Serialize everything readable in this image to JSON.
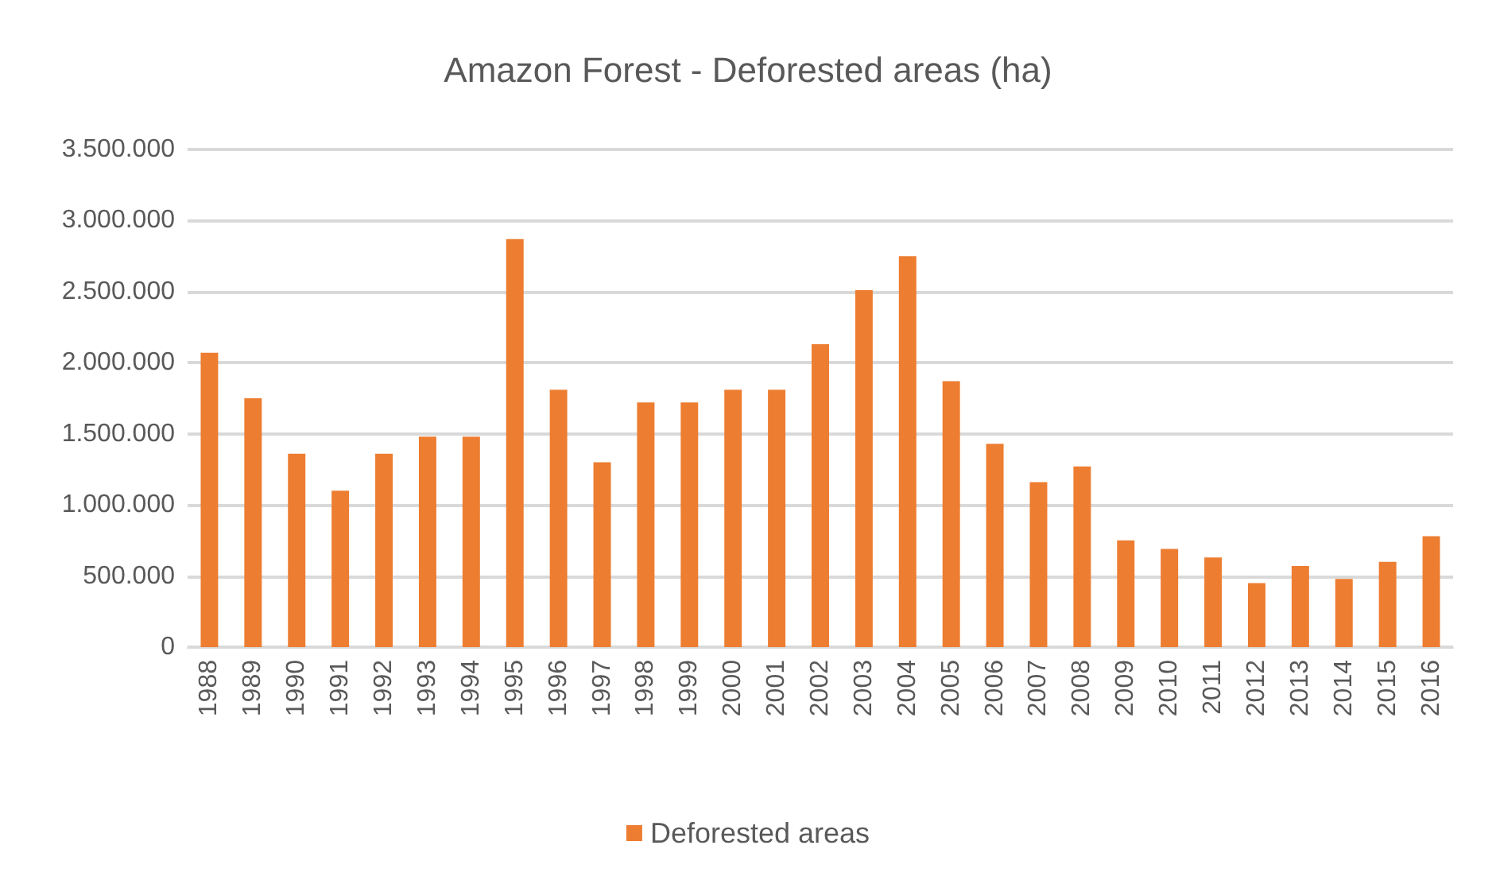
{
  "chart_data": {
    "type": "bar",
    "title": "Amazon Forest - Deforested areas (ha)",
    "categories": [
      "1988",
      "1989",
      "1990",
      "1991",
      "1992",
      "1993",
      "1994",
      "1995",
      "1996",
      "1997",
      "1998",
      "1999",
      "2000",
      "2001",
      "2002",
      "2003",
      "2004",
      "2005",
      "2006",
      "2007",
      "2008",
      "2009",
      "2010",
      "2011",
      "2012",
      "2013",
      "2014",
      "2015",
      "2016"
    ],
    "series": [
      {
        "name": "Deforested areas",
        "color": "#ed7d31",
        "values": [
          2070000,
          1750000,
          1360000,
          1100000,
          1360000,
          1480000,
          1480000,
          2870000,
          1810000,
          1300000,
          1720000,
          1720000,
          1810000,
          1810000,
          2130000,
          2510000,
          2750000,
          1870000,
          1430000,
          1160000,
          1270000,
          750000,
          690000,
          630000,
          450000,
          570000,
          480000,
          600000,
          780000
        ]
      }
    ],
    "ylim": [
      0,
      3500000
    ],
    "yticks": [
      0,
      {
        "value": 500000,
        "label": "500.000"
      },
      {
        "value": 1000000,
        "label": "1.000.000"
      },
      {
        "value": 1500000,
        "label": "1.500.000"
      },
      {
        "value": 2000000,
        "label": "2.000.000"
      },
      {
        "value": 2500000,
        "label": "2.500.000"
      },
      {
        "value": 3000000,
        "label": "3.000.000"
      },
      {
        "value": 3500000,
        "label": "3.500.000"
      }
    ],
    "grid": "y",
    "legend": "bottom"
  }
}
